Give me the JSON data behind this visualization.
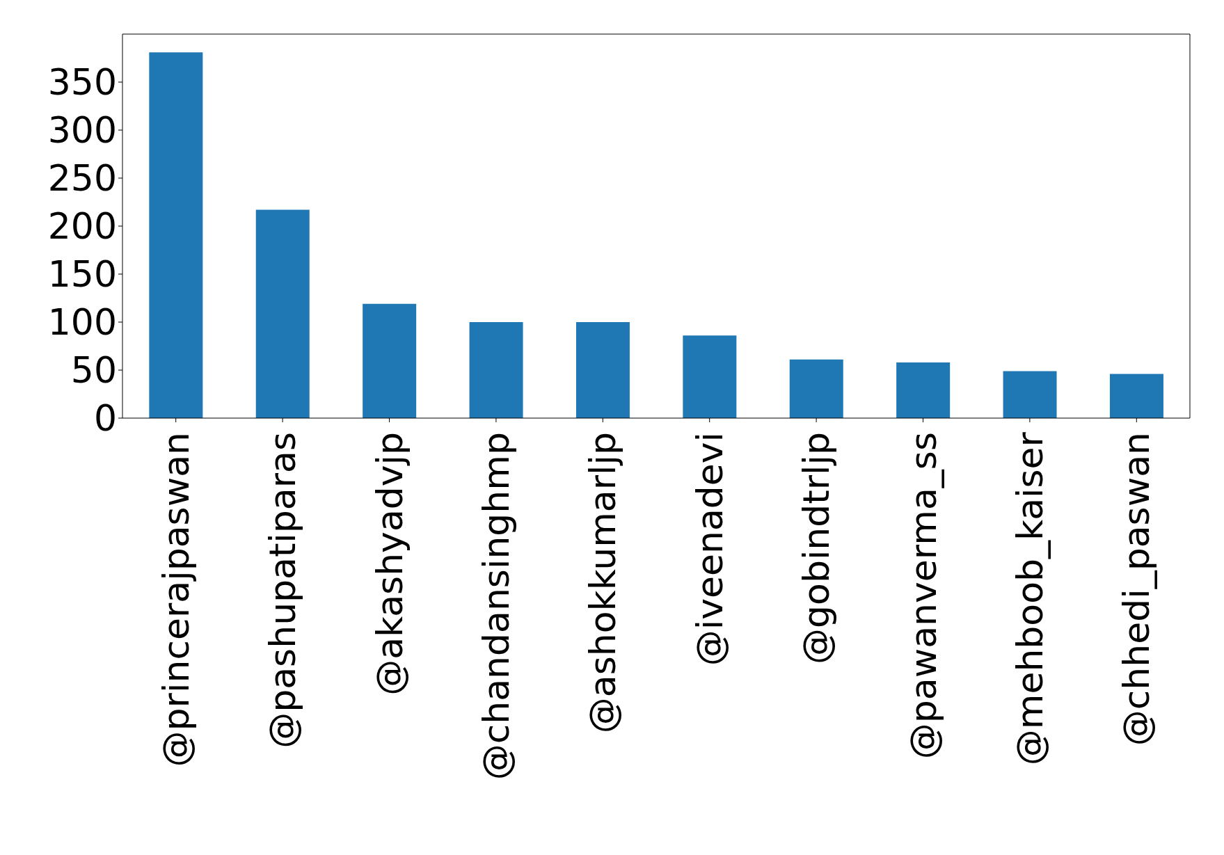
{
  "chart_data": {
    "type": "bar",
    "categories": [
      "@princerajpaswan",
      "@pashupatiparas",
      "@akashyadvjp",
      "@chandansinghmp",
      "@ashokkumarljp",
      "@iveenadevi",
      "@gobindtrljp",
      "@pawanverma_ss",
      "@mehboob_kaiser",
      "@chhedi_paswan"
    ],
    "values": [
      381,
      217,
      119,
      100,
      100,
      86,
      61,
      58,
      49,
      46
    ],
    "color": "#1f77b4",
    "ylim": [
      0,
      400
    ],
    "yticks": [
      0,
      50,
      100,
      150,
      200,
      250,
      300,
      350
    ],
    "grid": false,
    "legend": false
  }
}
